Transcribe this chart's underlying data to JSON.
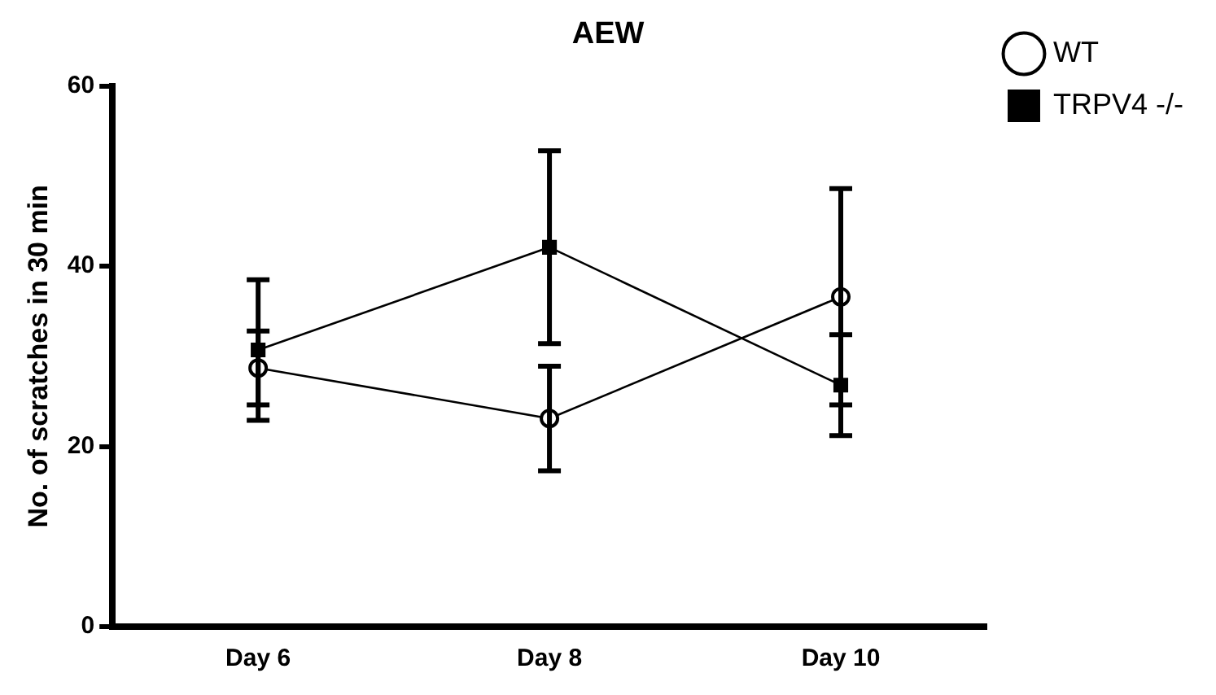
{
  "chart_data": {
    "type": "line",
    "title": "AEW",
    "ylabel": "No. of scratches in 30 min",
    "categories": [
      "Day 6",
      "Day 8",
      "Day 10"
    ],
    "series": [
      {
        "name": "WT",
        "color": "#000000",
        "marker": "circle",
        "values": [
          28.7,
          23.1,
          36.6
        ],
        "errors": [
          4.1,
          5.8,
          12
        ]
      },
      {
        "name": "TRPV4 -/-",
        "color": "#000000",
        "marker": "square",
        "values": [
          30.7,
          42.1,
          26.8
        ],
        "errors": [
          7.8,
          10.7,
          5.6
        ]
      }
    ],
    "ylim": [
      0,
      60
    ],
    "yticks": [
      0,
      20,
      40,
      60
    ],
    "grid": false,
    "legend": "right",
    "line_style": "solid"
  }
}
